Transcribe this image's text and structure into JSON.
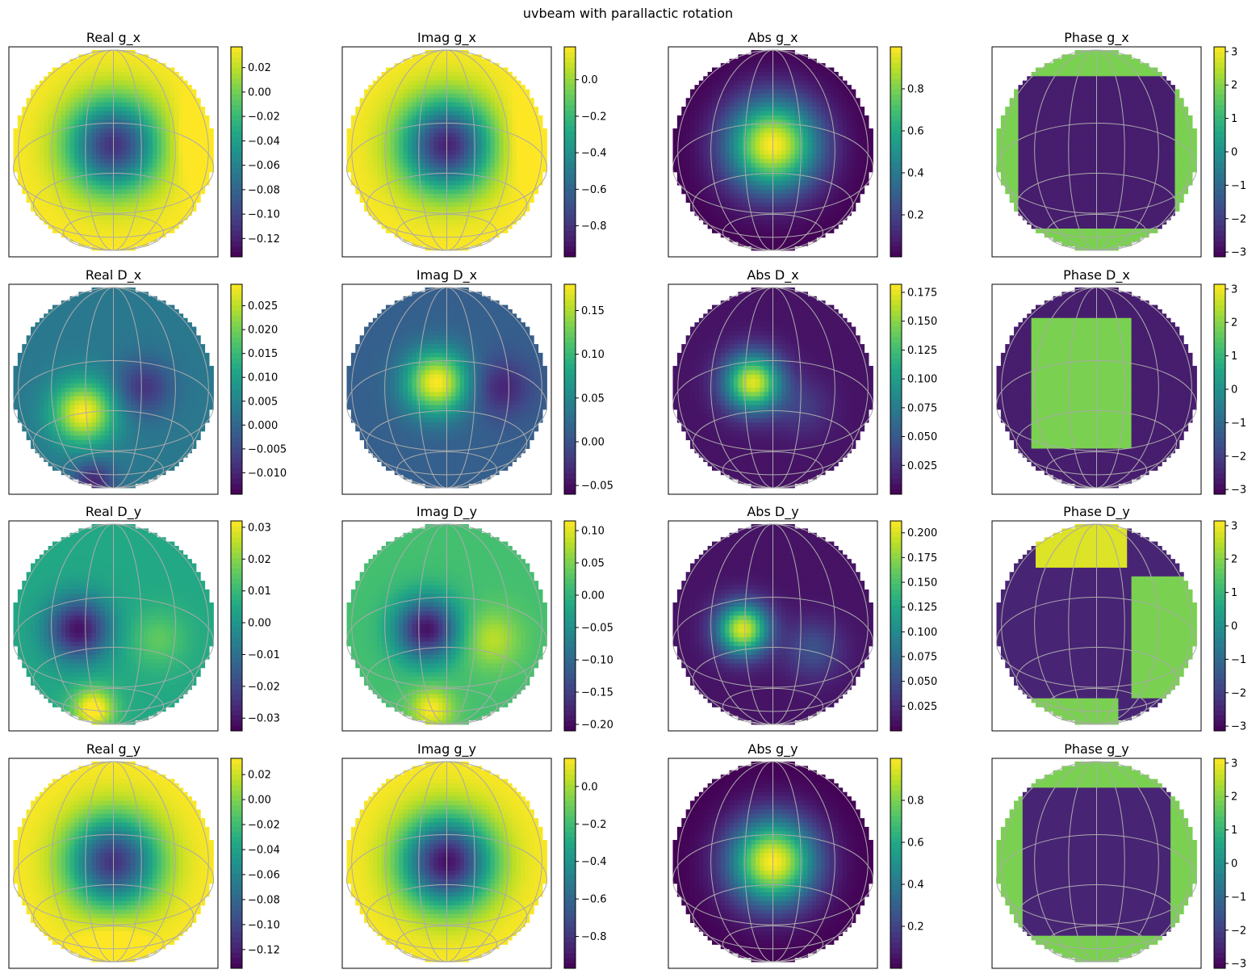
{
  "title": "uvbeam with parallactic rotation",
  "colormap": "viridis",
  "colors": {
    "frame": "#000000",
    "graticule": "#aaaaaa",
    "background": "#ffffff"
  },
  "chart_data": [
    {
      "type": "heatmap",
      "title": "Real g_x",
      "component": "Real",
      "term": "g_x",
      "colorbar": {
        "vmin": -0.135,
        "vmax": 0.037,
        "ticks": [
          "0.02",
          "0.00",
          "−0.02",
          "−0.04",
          "−0.06",
          "−0.08",
          "−0.10",
          "−0.12"
        ],
        "tick_values": [
          0.02,
          0.0,
          -0.02,
          -0.04,
          -0.06,
          -0.08,
          -0.1,
          -0.12
        ]
      }
    },
    {
      "type": "heatmap",
      "title": "Imag g_x",
      "component": "Imag",
      "term": "g_x",
      "colorbar": {
        "vmin": -0.97,
        "vmax": 0.18,
        "ticks": [
          "0.0",
          "−0.2",
          "−0.4",
          "−0.6",
          "−0.8"
        ],
        "tick_values": [
          0.0,
          -0.2,
          -0.4,
          -0.6,
          -0.8
        ]
      }
    },
    {
      "type": "heatmap",
      "title": "Abs g_x",
      "component": "Abs",
      "term": "g_x",
      "colorbar": {
        "vmin": 0.0,
        "vmax": 1.0,
        "ticks": [
          "0.8",
          "0.6",
          "0.4",
          "0.2"
        ],
        "tick_values": [
          0.8,
          0.6,
          0.4,
          0.2
        ]
      }
    },
    {
      "type": "heatmap",
      "title": "Phase g_x",
      "component": "Phase",
      "term": "g_x",
      "colorbar": {
        "vmin": -3.1416,
        "vmax": 3.1416,
        "ticks": [
          "3",
          "2",
          "1",
          "0",
          "−1",
          "−2",
          "−3"
        ],
        "tick_values": [
          3,
          2,
          1,
          0,
          -1,
          -2,
          -3
        ]
      }
    },
    {
      "type": "heatmap",
      "title": "Real D_x",
      "component": "Real",
      "term": "D_x",
      "colorbar": {
        "vmin": -0.0145,
        "vmax": 0.0295,
        "ticks": [
          "0.025",
          "0.020",
          "0.015",
          "0.010",
          "0.005",
          "0.000",
          "−0.005",
          "−0.010"
        ],
        "tick_values": [
          0.025,
          0.02,
          0.015,
          0.01,
          0.005,
          0.0,
          -0.005,
          -0.01
        ]
      }
    },
    {
      "type": "heatmap",
      "title": "Imag D_x",
      "component": "Imag",
      "term": "D_x",
      "colorbar": {
        "vmin": -0.06,
        "vmax": 0.18,
        "ticks": [
          "0.15",
          "0.10",
          "0.05",
          "0.00",
          "−0.05"
        ],
        "tick_values": [
          0.15,
          0.1,
          0.05,
          0.0,
          -0.05
        ]
      }
    },
    {
      "type": "heatmap",
      "title": "Abs D_x",
      "component": "Abs",
      "term": "D_x",
      "colorbar": {
        "vmin": 0.0,
        "vmax": 0.182,
        "ticks": [
          "0.175",
          "0.150",
          "0.125",
          "0.100",
          "0.075",
          "0.050",
          "0.025"
        ],
        "tick_values": [
          0.175,
          0.15,
          0.125,
          0.1,
          0.075,
          0.05,
          0.025
        ]
      }
    },
    {
      "type": "heatmap",
      "title": "Phase D_x",
      "component": "Phase",
      "term": "D_x",
      "colorbar": {
        "vmin": -3.1416,
        "vmax": 3.1416,
        "ticks": [
          "3",
          "2",
          "1",
          "0",
          "−1",
          "−2",
          "−3"
        ],
        "tick_values": [
          3,
          2,
          1,
          0,
          -1,
          -2,
          -3
        ]
      }
    },
    {
      "type": "heatmap",
      "title": "Real D_y",
      "component": "Real",
      "term": "D_y",
      "colorbar": {
        "vmin": -0.034,
        "vmax": 0.032,
        "ticks": [
          "0.03",
          "0.02",
          "0.01",
          "0.00",
          "−0.01",
          "−0.02",
          "−0.03"
        ],
        "tick_values": [
          0.03,
          0.02,
          0.01,
          0.0,
          -0.01,
          -0.02,
          -0.03
        ]
      }
    },
    {
      "type": "heatmap",
      "title": "Imag D_y",
      "component": "Imag",
      "term": "D_y",
      "colorbar": {
        "vmin": -0.21,
        "vmax": 0.115,
        "ticks": [
          "0.10",
          "0.05",
          "0.00",
          "−0.05",
          "−0.10",
          "−0.15",
          "−0.20"
        ],
        "tick_values": [
          0.1,
          0.05,
          0.0,
          -0.05,
          -0.1,
          -0.15,
          -0.2
        ]
      }
    },
    {
      "type": "heatmap",
      "title": "Abs D_y",
      "component": "Abs",
      "term": "D_y",
      "colorbar": {
        "vmin": 0.0,
        "vmax": 0.212,
        "ticks": [
          "0.200",
          "0.175",
          "0.150",
          "0.125",
          "0.100",
          "0.075",
          "0.050",
          "0.025"
        ],
        "tick_values": [
          0.2,
          0.175,
          0.15,
          0.125,
          0.1,
          0.075,
          0.05,
          0.025
        ]
      }
    },
    {
      "type": "heatmap",
      "title": "Phase D_y",
      "component": "Phase",
      "term": "D_y",
      "colorbar": {
        "vmin": -3.1416,
        "vmax": 3.1416,
        "ticks": [
          "3",
          "2",
          "1",
          "0",
          "−1",
          "−2",
          "−3"
        ],
        "tick_values": [
          3,
          2,
          1,
          0,
          -1,
          -2,
          -3
        ]
      }
    },
    {
      "type": "heatmap",
      "title": "Real g_y",
      "component": "Real",
      "term": "g_y",
      "colorbar": {
        "vmin": -0.135,
        "vmax": 0.033,
        "ticks": [
          "0.02",
          "0.00",
          "−0.02",
          "−0.04",
          "−0.06",
          "−0.08",
          "−0.10",
          "−0.12"
        ],
        "tick_values": [
          0.02,
          0.0,
          -0.02,
          -0.04,
          -0.06,
          -0.08,
          -0.1,
          -0.12
        ]
      }
    },
    {
      "type": "heatmap",
      "title": "Imag g_y",
      "component": "Imag",
      "term": "g_y",
      "colorbar": {
        "vmin": -0.97,
        "vmax": 0.15,
        "ticks": [
          "0.0",
          "−0.2",
          "−0.4",
          "−0.6",
          "−0.8"
        ],
        "tick_values": [
          0.0,
          -0.2,
          -0.4,
          -0.6,
          -0.8
        ]
      }
    },
    {
      "type": "heatmap",
      "title": "Abs g_y",
      "component": "Abs",
      "term": "g_y",
      "colorbar": {
        "vmin": 0.0,
        "vmax": 1.0,
        "ticks": [
          "0.8",
          "0.6",
          "0.4",
          "0.2"
        ],
        "tick_values": [
          0.8,
          0.6,
          0.4,
          0.2
        ]
      }
    },
    {
      "type": "heatmap",
      "title": "Phase g_y",
      "component": "Phase",
      "term": "g_y",
      "colorbar": {
        "vmin": -3.1416,
        "vmax": 3.1416,
        "ticks": [
          "3",
          "2",
          "1",
          "0",
          "−1",
          "−2",
          "−3"
        ],
        "tick_values": [
          3,
          2,
          1,
          0,
          -1,
          -2,
          -3
        ]
      }
    }
  ]
}
